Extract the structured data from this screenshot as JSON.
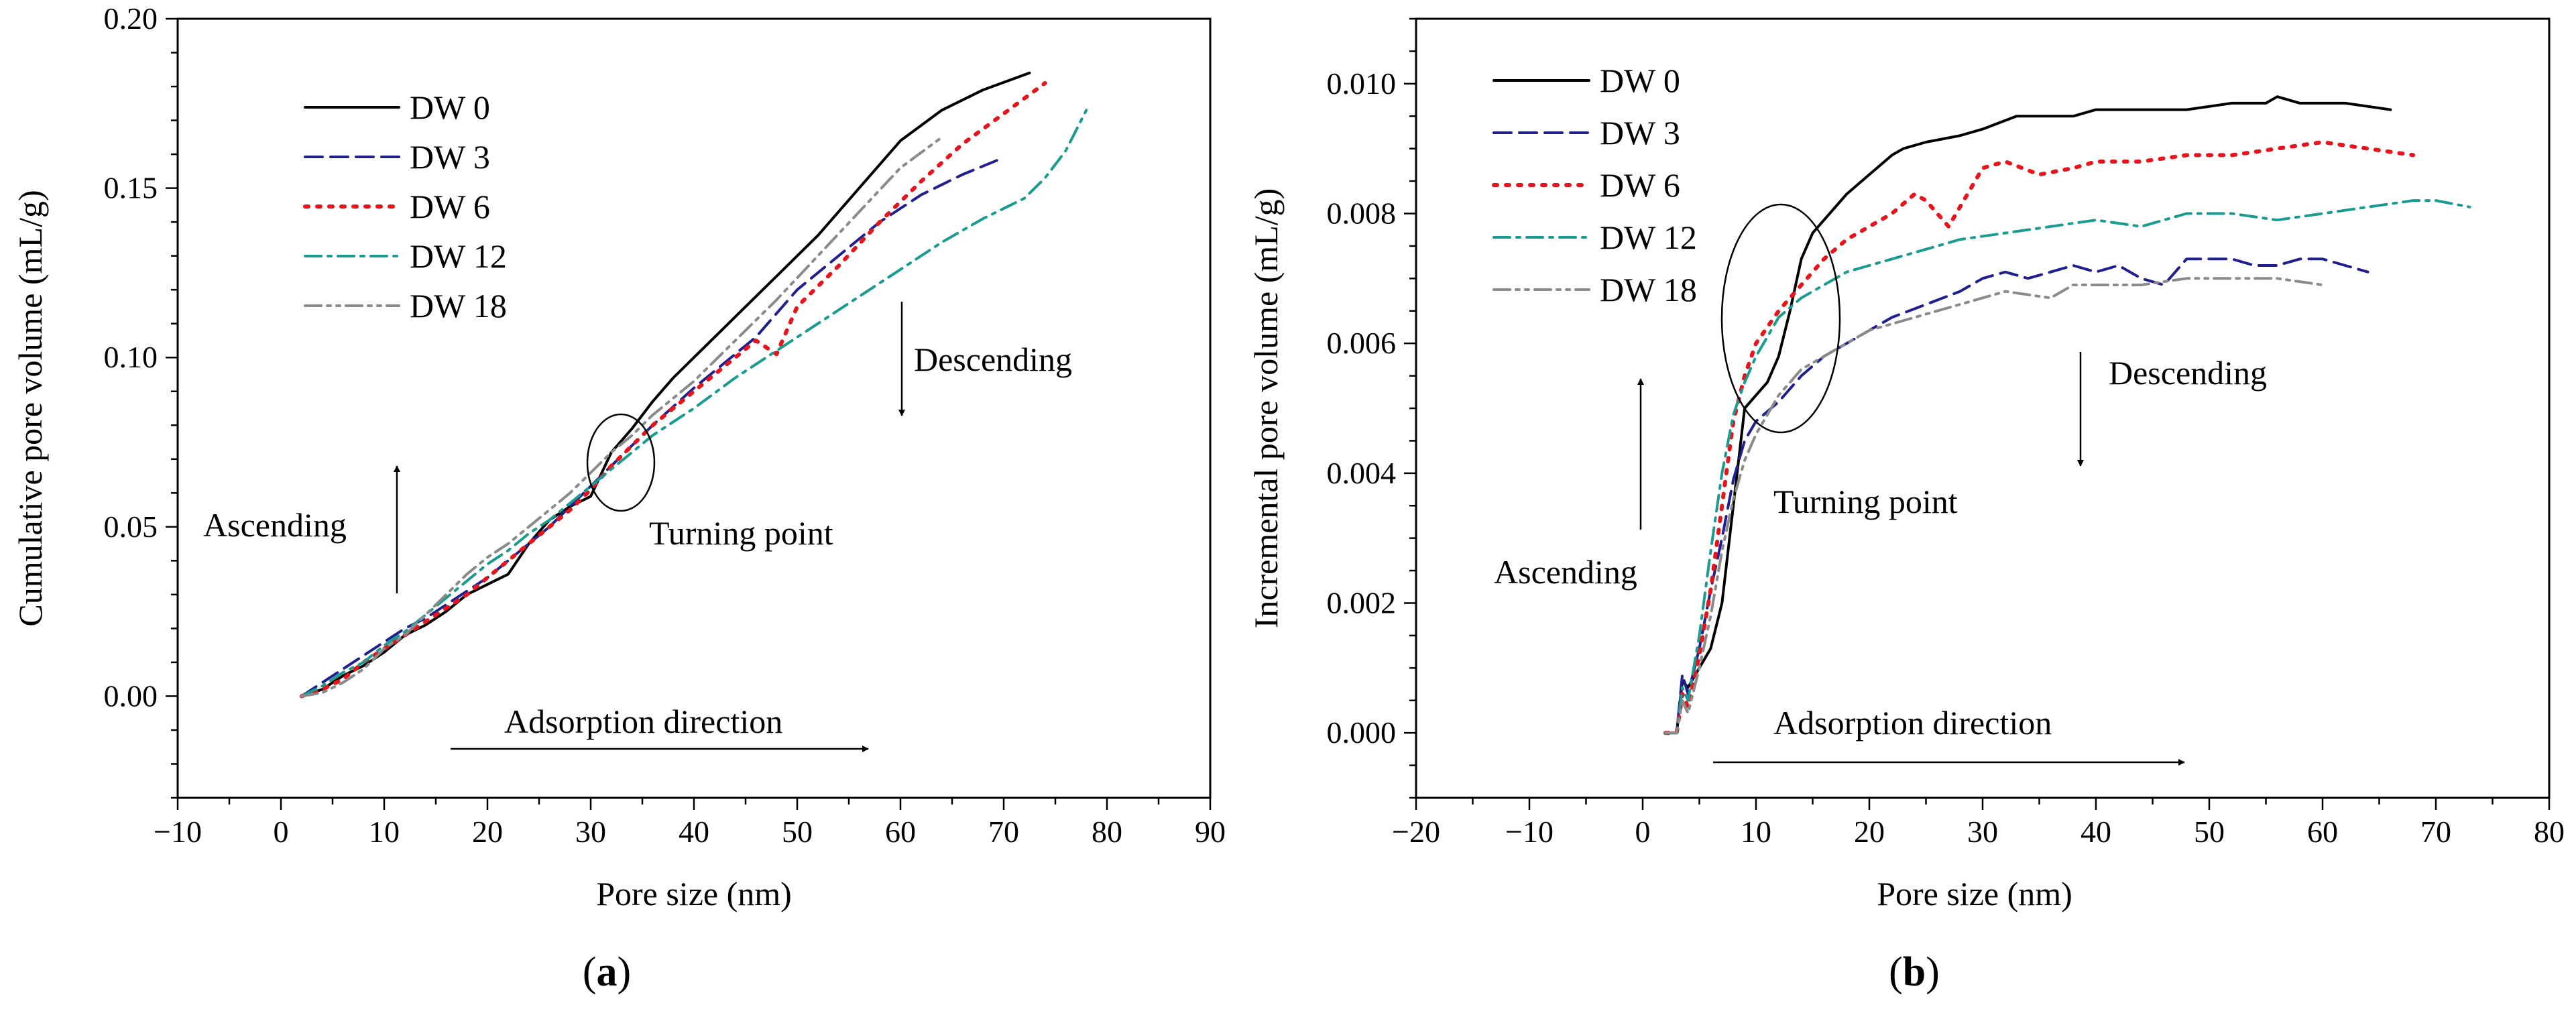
{
  "chart_data": [
    {
      "type": "line",
      "panel_label": "(a)",
      "panel_letter": "a",
      "xlabel": "Pore size (nm)",
      "ylabel": "Cumulative pore volume (mL/g)",
      "xlim": [
        -10,
        90
      ],
      "ylim": [
        -0.03,
        0.2
      ],
      "x_major_ticks": [
        -10,
        0,
        10,
        20,
        30,
        40,
        50,
        60,
        70,
        80,
        90
      ],
      "x_tick_labels": [
        "−10",
        "0",
        "10",
        "20",
        "30",
        "40",
        "50",
        "60",
        "70",
        "80",
        "90"
      ],
      "y_major_ticks": [
        0,
        0.05,
        0.1,
        0.15,
        0.2
      ],
      "y_tick_labels": [
        "0.00",
        "0.05",
        "0.10",
        "0.15",
        "0.20"
      ],
      "grid": false,
      "legend_position": "top-left",
      "series": [
        {
          "name": "DW 0",
          "color": "#000000",
          "dash": "solid",
          "x": [
            2,
            4,
            6,
            8,
            10,
            12,
            14,
            16,
            18,
            20,
            22,
            24,
            26,
            28,
            30,
            32,
            34,
            36,
            38,
            40,
            44,
            48,
            52,
            56,
            60,
            64,
            68,
            72.5
          ],
          "y": [
            0,
            0.002,
            0.006,
            0.009,
            0.013,
            0.018,
            0.021,
            0.025,
            0.03,
            0.033,
            0.036,
            0.045,
            0.052,
            0.056,
            0.059,
            0.072,
            0.079,
            0.087,
            0.094,
            0.1,
            0.112,
            0.124,
            0.136,
            0.15,
            0.164,
            0.173,
            0.179,
            0.184
          ]
        },
        {
          "name": "DW 3",
          "color": "#1f1f8f",
          "dash": "dash",
          "x": [
            2,
            4,
            6,
            8,
            10,
            12,
            14,
            16,
            18,
            20,
            22,
            24,
            26,
            28,
            30,
            32,
            34,
            36,
            40,
            44,
            46,
            48,
            50,
            54,
            58,
            62,
            66,
            70
          ],
          "y": [
            0,
            0.004,
            0.008,
            0.012,
            0.016,
            0.02,
            0.023,
            0.027,
            0.031,
            0.035,
            0.04,
            0.045,
            0.05,
            0.056,
            0.062,
            0.068,
            0.074,
            0.08,
            0.091,
            0.101,
            0.106,
            0.113,
            0.12,
            0.13,
            0.14,
            0.148,
            0.154,
            0.159
          ]
        },
        {
          "name": "DW 6",
          "color": "#e8141b",
          "dash": "dot",
          "x": [
            2,
            4,
            6,
            8,
            10,
            12,
            14,
            16,
            18,
            20,
            22,
            24,
            26,
            28,
            30,
            32,
            34,
            36,
            40,
            44,
            46,
            48,
            50,
            54,
            58,
            60,
            62,
            66,
            70,
            74
          ],
          "y": [
            0,
            0.002,
            0.005,
            0.01,
            0.014,
            0.018,
            0.022,
            0.026,
            0.03,
            0.035,
            0.04,
            0.045,
            0.05,
            0.055,
            0.061,
            0.068,
            0.074,
            0.08,
            0.09,
            0.1,
            0.105,
            0.101,
            0.115,
            0.127,
            0.14,
            0.146,
            0.152,
            0.163,
            0.172,
            0.181
          ]
        },
        {
          "name": "DW 12",
          "color": "#1a9b91",
          "dash": "dashdot",
          "x": [
            2,
            4,
            6,
            8,
            10,
            12,
            14,
            16,
            18,
            20,
            22,
            24,
            26,
            28,
            30,
            32,
            34,
            36,
            40,
            44,
            48,
            52,
            56,
            60,
            64,
            68,
            72,
            74,
            76,
            78
          ],
          "y": [
            0,
            0.003,
            0.007,
            0.01,
            0.015,
            0.019,
            0.024,
            0.029,
            0.034,
            0.039,
            0.043,
            0.048,
            0.052,
            0.057,
            0.062,
            0.067,
            0.072,
            0.077,
            0.085,
            0.094,
            0.102,
            0.11,
            0.118,
            0.126,
            0.134,
            0.141,
            0.147,
            0.153,
            0.161,
            0.173
          ]
        },
        {
          "name": "DW 18",
          "color": "#8a8a8a",
          "dash": "dashdotdot",
          "x": [
            2,
            4,
            6,
            8,
            10,
            12,
            14,
            16,
            18,
            20,
            22,
            24,
            26,
            28,
            30,
            32,
            34,
            36,
            40,
            44,
            48,
            52,
            56,
            60,
            64
          ],
          "y": [
            0,
            0.001,
            0.004,
            0.008,
            0.014,
            0.018,
            0.024,
            0.03,
            0.036,
            0.041,
            0.045,
            0.05,
            0.055,
            0.06,
            0.066,
            0.072,
            0.077,
            0.083,
            0.093,
            0.105,
            0.117,
            0.13,
            0.143,
            0.156,
            0.165
          ]
        }
      ],
      "annotations": {
        "ascending": "Ascending",
        "descending": "Descending",
        "turning_point": "Turning point",
        "adsorption_direction": "Adsorption direction"
      }
    },
    {
      "type": "line",
      "panel_label": "(b)",
      "panel_letter": "b",
      "xlabel": "Pore size (nm)",
      "ylabel": "Incremental pore volume (mL/g)",
      "xlim": [
        -20,
        80
      ],
      "ylim": [
        -0.001,
        0.011
      ],
      "x_major_ticks": [
        -20,
        -10,
        0,
        10,
        20,
        30,
        40,
        50,
        60,
        70,
        80
      ],
      "x_tick_labels": [
        "−20",
        "−10",
        "0",
        "10",
        "20",
        "30",
        "40",
        "50",
        "60",
        "70",
        "80"
      ],
      "y_major_ticks": [
        0,
        0.002,
        0.004,
        0.006,
        0.008,
        0.01
      ],
      "y_tick_labels": [
        "0.000",
        "0.002",
        "0.004",
        "0.006",
        "0.008",
        "0.010"
      ],
      "grid": false,
      "legend_position": "top-left",
      "series": [
        {
          "name": "DW 0",
          "color": "#000000",
          "dash": "solid",
          "x": [
            2,
            3,
            3.5,
            4,
            5,
            6,
            7,
            8,
            9,
            10,
            11,
            12,
            13,
            14,
            15,
            16,
            18,
            20,
            22,
            23,
            25,
            28,
            30,
            33,
            36,
            38,
            40,
            44,
            48,
            52,
            55,
            56,
            58,
            62,
            66
          ],
          "y": [
            0,
            0,
            0.0008,
            0.0007,
            0.001,
            0.0013,
            0.002,
            0.0035,
            0.005,
            0.0052,
            0.0054,
            0.0058,
            0.0065,
            0.0073,
            0.0077,
            0.0079,
            0.0083,
            0.0086,
            0.0089,
            0.009,
            0.0091,
            0.0092,
            0.0093,
            0.0095,
            0.0095,
            0.0095,
            0.0096,
            0.0096,
            0.0096,
            0.0097,
            0.0097,
            0.0098,
            0.0097,
            0.0097,
            0.0096
          ]
        },
        {
          "name": "DW 3",
          "color": "#1f1f8f",
          "dash": "dash",
          "x": [
            2,
            3,
            3.5,
            4,
            5,
            6,
            7,
            8,
            9,
            10,
            12,
            14,
            16,
            18,
            20,
            22,
            25,
            28,
            30,
            32,
            34,
            36,
            38,
            40,
            42,
            44,
            46,
            48,
            50,
            52,
            54,
            56,
            58,
            60,
            62,
            64
          ],
          "y": [
            0,
            0,
            0.0009,
            0.0006,
            0.0013,
            0.0022,
            0.003,
            0.0039,
            0.0045,
            0.0048,
            0.0051,
            0.0055,
            0.0058,
            0.006,
            0.0062,
            0.0064,
            0.0066,
            0.0068,
            0.007,
            0.0071,
            0.007,
            0.0071,
            0.0072,
            0.0071,
            0.0072,
            0.007,
            0.0069,
            0.0073,
            0.0073,
            0.0073,
            0.0072,
            0.0072,
            0.0073,
            0.0073,
            0.0072,
            0.0071
          ]
        },
        {
          "name": "DW 6",
          "color": "#e8141b",
          "dash": "dot",
          "x": [
            2,
            3,
            3.5,
            4,
            5,
            6,
            7,
            8,
            9,
            10,
            12,
            14,
            16,
            18,
            20,
            22,
            24,
            25,
            27,
            28,
            30,
            32,
            35,
            38,
            40,
            44,
            48,
            52,
            56,
            60,
            64,
            68
          ],
          "y": [
            0,
            0,
            0.0006,
            0.0004,
            0.0012,
            0.0022,
            0.0035,
            0.0048,
            0.0055,
            0.006,
            0.0065,
            0.0069,
            0.0073,
            0.0076,
            0.0078,
            0.008,
            0.0083,
            0.0082,
            0.0078,
            0.0081,
            0.0087,
            0.0088,
            0.0086,
            0.0087,
            0.0088,
            0.0088,
            0.0089,
            0.0089,
            0.009,
            0.0091,
            0.009,
            0.0089
          ]
        },
        {
          "name": "DW 12",
          "color": "#1a9b91",
          "dash": "dashdot",
          "x": [
            2,
            3,
            3.5,
            4,
            5,
            6,
            7,
            8,
            9,
            10,
            12,
            14,
            16,
            18,
            20,
            24,
            28,
            32,
            36,
            40,
            44,
            48,
            52,
            56,
            60,
            64,
            68,
            70,
            73
          ],
          "y": [
            0,
            0,
            0.0007,
            0.0005,
            0.0015,
            0.0028,
            0.004,
            0.0049,
            0.0054,
            0.0058,
            0.0064,
            0.0067,
            0.0069,
            0.0071,
            0.0072,
            0.0074,
            0.0076,
            0.0077,
            0.0078,
            0.0079,
            0.0078,
            0.008,
            0.008,
            0.0079,
            0.008,
            0.0081,
            0.0082,
            0.0082,
            0.0081
          ]
        },
        {
          "name": "DW 18",
          "color": "#8a8a8a",
          "dash": "dashdotdot",
          "x": [
            2,
            3,
            3.5,
            4,
            5,
            6,
            7,
            8,
            9,
            10,
            12,
            14,
            16,
            18,
            20,
            24,
            28,
            32,
            36,
            38,
            40,
            44,
            48,
            52,
            56,
            60
          ],
          "y": [
            0,
            0,
            0.0005,
            0.0003,
            0.001,
            0.0018,
            0.0028,
            0.0036,
            0.0042,
            0.0046,
            0.0052,
            0.0056,
            0.0058,
            0.006,
            0.0062,
            0.0064,
            0.0066,
            0.0068,
            0.0067,
            0.0069,
            0.0069,
            0.0069,
            0.007,
            0.007,
            0.007,
            0.0069
          ]
        }
      ],
      "annotations": {
        "ascending": "Ascending",
        "descending": "Descending",
        "turning_point": "Turning point",
        "adsorption_direction": "Adsorption direction"
      }
    }
  ]
}
